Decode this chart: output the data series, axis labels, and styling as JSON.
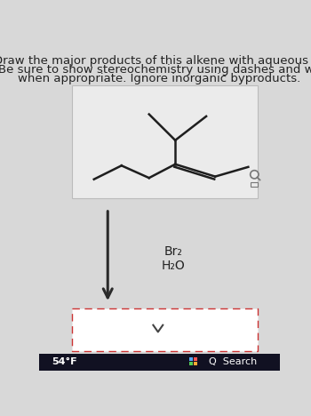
{
  "title_lines": [
    "Draw the major products of this alkene with aqueous br",
    "Be sure to show stereochemistry using dashes and we",
    "when appropriate. Ignore inorganic byproducts."
  ],
  "title_fontsize": 9.5,
  "bg_color": "#d8d8d8",
  "molecule_box_border": "#bbbbbb",
  "reagent1": "Br₂",
  "reagent2": "H₂O",
  "arrow_color": "#2a2a2a",
  "text_color": "#222222",
  "bottom_bar_color": "#111122",
  "bottom_temp": "54°F",
  "bottom_search": "Q  Search",
  "line_color": "#1e1e1e",
  "line_width": 1.8
}
